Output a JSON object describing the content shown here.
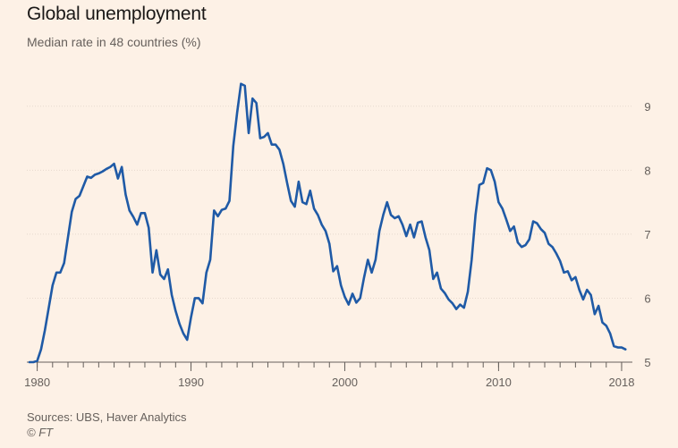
{
  "header": {
    "title": "Global unemployment",
    "subtitle": "Median rate in 48 countries (%)"
  },
  "footer": {
    "source": "Sources: UBS, Haver Analytics",
    "credit": "© FT"
  },
  "colors": {
    "background": "#fdf1e6",
    "line": "#1f5aa6",
    "grid": "#e6d9ce",
    "axis": "#66605c"
  },
  "chart_data": {
    "type": "line",
    "title": "Global unemployment",
    "subtitle": "Median rate in 48 countries (%)",
    "xlabel": "",
    "ylabel": "",
    "xlim": [
      1979.5,
      2018.7
    ],
    "ylim": [
      5,
      9.5
    ],
    "y_ticks": [
      5,
      6,
      7,
      8,
      9
    ],
    "x_ticks": [
      1980,
      1990,
      2000,
      2010,
      2018
    ],
    "x_tick_labels": [
      "1980",
      "1990",
      "2000",
      "2010",
      "2018"
    ],
    "grid": "horizontal",
    "y_axis_side": "right",
    "series": [
      {
        "name": "",
        "points": [
          [
            1979.5,
            5.0
          ],
          [
            1979.75,
            5.0
          ],
          [
            1980.0,
            5.02
          ],
          [
            1980.25,
            5.2
          ],
          [
            1980.5,
            5.5
          ],
          [
            1980.75,
            5.85
          ],
          [
            1981.0,
            6.2
          ],
          [
            1981.25,
            6.4
          ],
          [
            1981.5,
            6.4
          ],
          [
            1981.75,
            6.55
          ],
          [
            1982.0,
            6.95
          ],
          [
            1982.25,
            7.35
          ],
          [
            1982.5,
            7.55
          ],
          [
            1982.75,
            7.6
          ],
          [
            1983.0,
            7.75
          ],
          [
            1983.25,
            7.9
          ],
          [
            1983.5,
            7.88
          ],
          [
            1983.75,
            7.93
          ],
          [
            1984.0,
            7.95
          ],
          [
            1984.25,
            7.98
          ],
          [
            1984.5,
            8.02
          ],
          [
            1984.75,
            8.05
          ],
          [
            1985.0,
            8.1
          ],
          [
            1985.25,
            7.87
          ],
          [
            1985.5,
            8.05
          ],
          [
            1985.75,
            7.62
          ],
          [
            1986.0,
            7.37
          ],
          [
            1986.25,
            7.27
          ],
          [
            1986.5,
            7.15
          ],
          [
            1986.75,
            7.33
          ],
          [
            1987.0,
            7.33
          ],
          [
            1987.25,
            7.1
          ],
          [
            1987.5,
            6.4
          ],
          [
            1987.75,
            6.75
          ],
          [
            1988.0,
            6.37
          ],
          [
            1988.25,
            6.3
          ],
          [
            1988.5,
            6.45
          ],
          [
            1988.75,
            6.05
          ],
          [
            1989.0,
            5.8
          ],
          [
            1989.25,
            5.6
          ],
          [
            1989.5,
            5.45
          ],
          [
            1989.75,
            5.35
          ],
          [
            1990.0,
            5.7
          ],
          [
            1990.25,
            6.0
          ],
          [
            1990.5,
            6.0
          ],
          [
            1990.75,
            5.92
          ],
          [
            1991.0,
            6.4
          ],
          [
            1991.25,
            6.6
          ],
          [
            1991.5,
            7.37
          ],
          [
            1991.75,
            7.28
          ],
          [
            1992.0,
            7.38
          ],
          [
            1992.25,
            7.4
          ],
          [
            1992.5,
            7.52
          ],
          [
            1992.75,
            8.38
          ],
          [
            1993.0,
            8.9
          ],
          [
            1993.25,
            9.35
          ],
          [
            1993.5,
            9.32
          ],
          [
            1993.75,
            8.58
          ],
          [
            1994.0,
            9.12
          ],
          [
            1994.25,
            9.05
          ],
          [
            1994.5,
            8.5
          ],
          [
            1994.75,
            8.52
          ],
          [
            1995.0,
            8.58
          ],
          [
            1995.25,
            8.4
          ],
          [
            1995.5,
            8.4
          ],
          [
            1995.75,
            8.32
          ],
          [
            1996.0,
            8.1
          ],
          [
            1996.25,
            7.8
          ],
          [
            1996.5,
            7.52
          ],
          [
            1996.75,
            7.43
          ],
          [
            1997.0,
            7.82
          ],
          [
            1997.25,
            7.5
          ],
          [
            1997.5,
            7.47
          ],
          [
            1997.75,
            7.68
          ],
          [
            1998.0,
            7.4
          ],
          [
            1998.25,
            7.3
          ],
          [
            1998.5,
            7.15
          ],
          [
            1998.75,
            7.05
          ],
          [
            1999.0,
            6.85
          ],
          [
            1999.25,
            6.42
          ],
          [
            1999.5,
            6.5
          ],
          [
            1999.75,
            6.2
          ],
          [
            2000.0,
            6.02
          ],
          [
            2000.25,
            5.9
          ],
          [
            2000.5,
            6.07
          ],
          [
            2000.75,
            5.93
          ],
          [
            2001.0,
            6.0
          ],
          [
            2001.25,
            6.32
          ],
          [
            2001.5,
            6.6
          ],
          [
            2001.75,
            6.4
          ],
          [
            2002.0,
            6.6
          ],
          [
            2002.25,
            7.05
          ],
          [
            2002.5,
            7.3
          ],
          [
            2002.75,
            7.5
          ],
          [
            2003.0,
            7.3
          ],
          [
            2003.25,
            7.25
          ],
          [
            2003.5,
            7.28
          ],
          [
            2003.75,
            7.15
          ],
          [
            2004.0,
            6.97
          ],
          [
            2004.25,
            7.15
          ],
          [
            2004.5,
            6.95
          ],
          [
            2004.75,
            7.18
          ],
          [
            2005.0,
            7.2
          ],
          [
            2005.25,
            6.95
          ],
          [
            2005.5,
            6.75
          ],
          [
            2005.75,
            6.3
          ],
          [
            2006.0,
            6.4
          ],
          [
            2006.25,
            6.15
          ],
          [
            2006.5,
            6.08
          ],
          [
            2006.75,
            5.98
          ],
          [
            2007.0,
            5.92
          ],
          [
            2007.25,
            5.83
          ],
          [
            2007.5,
            5.9
          ],
          [
            2007.75,
            5.85
          ],
          [
            2008.0,
            6.1
          ],
          [
            2008.25,
            6.6
          ],
          [
            2008.5,
            7.3
          ],
          [
            2008.75,
            7.77
          ],
          [
            2009.0,
            7.8
          ],
          [
            2009.25,
            8.03
          ],
          [
            2009.5,
            8.0
          ],
          [
            2009.75,
            7.82
          ],
          [
            2010.0,
            7.5
          ],
          [
            2010.25,
            7.4
          ],
          [
            2010.5,
            7.23
          ],
          [
            2010.75,
            7.05
          ],
          [
            2011.0,
            7.12
          ],
          [
            2011.25,
            6.87
          ],
          [
            2011.5,
            6.8
          ],
          [
            2011.75,
            6.83
          ],
          [
            2012.0,
            6.92
          ],
          [
            2012.25,
            7.2
          ],
          [
            2012.5,
            7.17
          ],
          [
            2012.75,
            7.08
          ],
          [
            2013.0,
            7.02
          ],
          [
            2013.25,
            6.85
          ],
          [
            2013.5,
            6.8
          ],
          [
            2013.75,
            6.7
          ],
          [
            2014.0,
            6.58
          ],
          [
            2014.25,
            6.4
          ],
          [
            2014.5,
            6.42
          ],
          [
            2014.75,
            6.28
          ],
          [
            2015.0,
            6.33
          ],
          [
            2015.25,
            6.13
          ],
          [
            2015.5,
            5.98
          ],
          [
            2015.75,
            6.13
          ],
          [
            2016.0,
            6.05
          ],
          [
            2016.25,
            5.75
          ],
          [
            2016.5,
            5.88
          ],
          [
            2016.75,
            5.62
          ],
          [
            2017.0,
            5.57
          ],
          [
            2017.25,
            5.45
          ],
          [
            2017.5,
            5.25
          ],
          [
            2017.75,
            5.23
          ],
          [
            2018.0,
            5.23
          ],
          [
            2018.25,
            5.2
          ]
        ]
      }
    ]
  }
}
